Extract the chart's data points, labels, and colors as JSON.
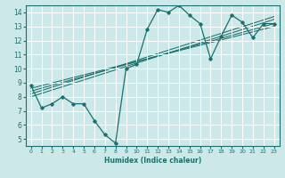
{
  "title": "",
  "xlabel": "Humidex (Indice chaleur)",
  "bg_color": "#cce8e8",
  "line_color": "#1a7070",
  "grid_color": "#ffffff",
  "xlim": [
    -0.5,
    23.5
  ],
  "ylim": [
    4.5,
    14.5
  ],
  "xticks": [
    0,
    1,
    2,
    3,
    4,
    5,
    6,
    7,
    8,
    9,
    10,
    11,
    12,
    13,
    14,
    15,
    16,
    17,
    18,
    19,
    20,
    21,
    22,
    23
  ],
  "yticks": [
    5,
    6,
    7,
    8,
    9,
    10,
    11,
    12,
    13,
    14
  ],
  "series": [
    [
      0,
      8.8
    ],
    [
      1,
      7.2
    ],
    [
      2,
      7.5
    ],
    [
      3,
      8.0
    ],
    [
      4,
      7.5
    ],
    [
      5,
      7.5
    ],
    [
      6,
      6.3
    ],
    [
      7,
      5.3
    ],
    [
      8,
      4.7
    ],
    [
      9,
      10.0
    ],
    [
      10,
      10.3
    ],
    [
      11,
      12.8
    ],
    [
      12,
      14.2
    ],
    [
      13,
      14.0
    ],
    [
      14,
      14.5
    ],
    [
      15,
      13.8
    ],
    [
      16,
      13.2
    ],
    [
      17,
      10.7
    ],
    [
      18,
      12.3
    ],
    [
      19,
      13.8
    ],
    [
      20,
      13.3
    ],
    [
      21,
      12.2
    ],
    [
      22,
      13.2
    ],
    [
      23,
      13.2
    ]
  ],
  "trend_lines": [
    {
      "x0": 0,
      "y0": 8.0,
      "x1": 23,
      "y1": 13.5
    },
    {
      "x0": 0,
      "y0": 8.2,
      "x1": 23,
      "y1": 13.7
    },
    {
      "x0": 0,
      "y0": 8.4,
      "x1": 23,
      "y1": 13.2
    },
    {
      "x0": 0,
      "y0": 8.6,
      "x1": 23,
      "y1": 13.0
    }
  ],
  "figsize": [
    3.2,
    2.0
  ],
  "dpi": 100
}
